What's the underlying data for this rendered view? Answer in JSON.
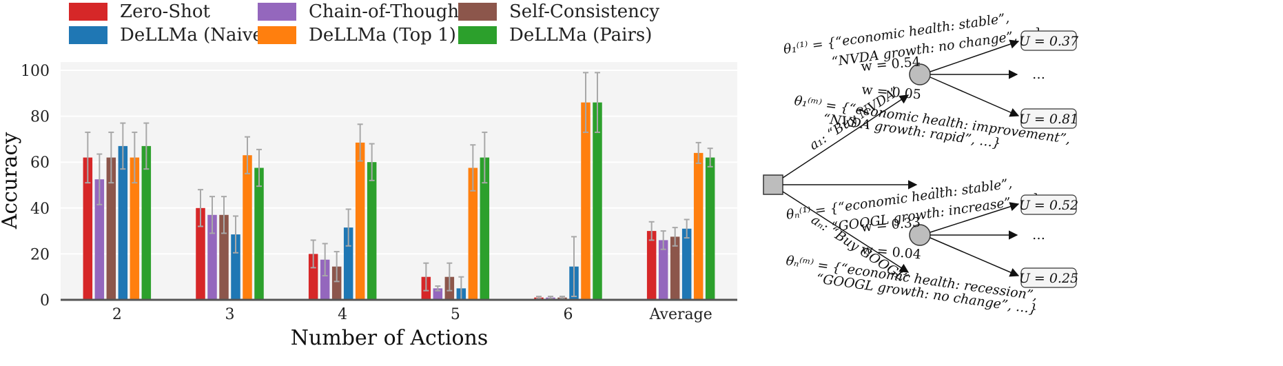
{
  "chart_data": {
    "type": "bar",
    "xlabel": "Number of Actions",
    "ylabel": "Accuracy",
    "ylim": [
      0,
      100
    ],
    "yticks": [
      "0",
      "20",
      "40",
      "60",
      "80",
      "100"
    ],
    "categories": [
      "2",
      "3",
      "4",
      "5",
      "6",
      "Average"
    ],
    "grid": true,
    "legend_position": "top",
    "series": [
      {
        "name": "Zero-Shot",
        "color": "#d62728",
        "values": [
          62,
          40,
          20,
          10,
          1,
          30
        ],
        "errors": [
          11,
          8,
          6,
          6,
          0.5,
          4
        ]
      },
      {
        "name": "Chain-of-Thought",
        "color": "#9467bd",
        "values": [
          52.5,
          37,
          17.5,
          5,
          1,
          26
        ],
        "errors": [
          11,
          8,
          7,
          1,
          0.5,
          4
        ]
      },
      {
        "name": "Self-Consistency",
        "color": "#8c564b",
        "values": [
          62,
          37,
          14.5,
          10,
          1,
          27.5
        ],
        "errors": [
          11,
          8,
          6.5,
          6,
          0.5,
          4
        ]
      },
      {
        "name": "DeLLMa (Naive)",
        "color": "#1f77b4",
        "values": [
          67,
          28.5,
          31.5,
          5,
          14.5,
          31
        ],
        "errors": [
          10,
          8,
          8,
          5,
          13,
          4
        ]
      },
      {
        "name": "DeLLMa (Top 1)",
        "color": "#ff7f0e",
        "values": [
          62,
          63,
          68.5,
          57.5,
          86,
          64
        ],
        "errors": [
          11,
          8,
          8,
          10,
          13,
          4.5
        ]
      },
      {
        "name": "DeLLMa (Pairs)",
        "color": "#2ca02c",
        "values": [
          67,
          57.5,
          60,
          62,
          86,
          62
        ],
        "errors": [
          10,
          8,
          8,
          11,
          13,
          4
        ]
      }
    ]
  },
  "tree": {
    "action1": "a₁: “Buy NVDA”",
    "actionN": "aₙ: “Buy GOOGL”",
    "ellipsis": "…",
    "theta11_line1": "θ₁⁽¹⁾ = {“economic health: stable”,",
    "theta11_line2": "“NVDA growth: no change”, …}",
    "theta1m_line1": "θ₁⁽ᵐ⁾ = {“economic health: improvement”,",
    "theta1m_line2": "“NVDA growth: rapid”, …}",
    "thetan1_line1": "θₙ⁽¹⁾ = {“economic health: stable”,",
    "thetan1_line2": "“GOOGL growth: increase”, …}",
    "thetanm_line1": "θₙ⁽ᵐ⁾ = {“economic health: recession”,",
    "thetanm_line2": "“GOOGL growth: no change”, …}",
    "w1a": "w = 0.54",
    "w1b": "w = 0.05",
    "wna": "w = 0.33",
    "wnb": "w = 0.04",
    "u11": "U = 0.37",
    "u1m": "U = 0.81",
    "un1": "U = 0.52",
    "unm": "U = 0.25"
  }
}
